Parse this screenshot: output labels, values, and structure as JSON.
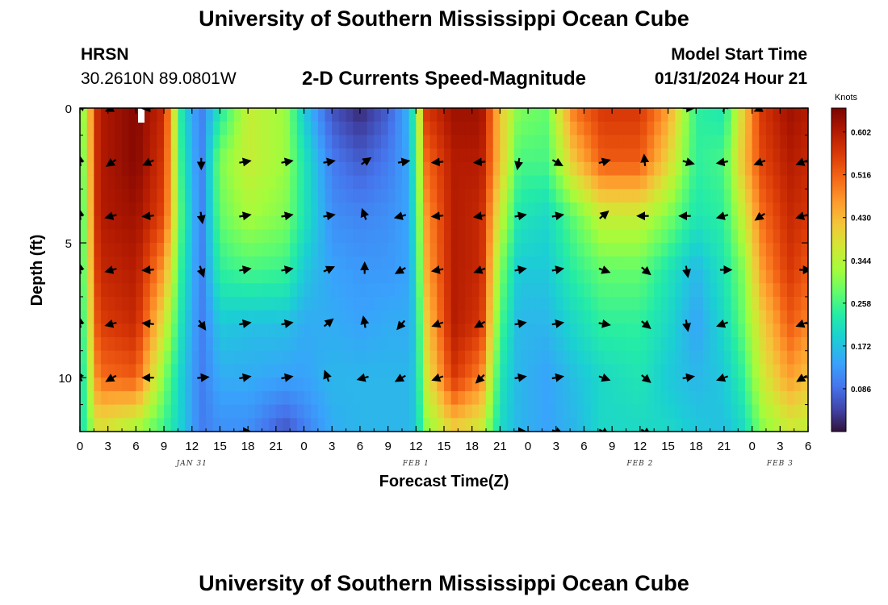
{
  "header": {
    "title": "University of Southern Mississippi Ocean Cube",
    "station": "HRSN",
    "coords": "30.2610N  89.0801W",
    "subtitle": "2-D Currents Speed-Magnitude",
    "model_label": "Model Start Time",
    "model_time": "01/31/2024 Hour 21"
  },
  "footer": {
    "title": "University of Southern Mississippi Ocean Cube"
  },
  "chart_data": {
    "type": "heatmap",
    "title": "2-D Currents Speed-Magnitude",
    "xlabel": "Forecast Time(Z)",
    "ylabel": "Depth (ft)",
    "x_ticks": [
      "0",
      "3",
      "6",
      "9",
      "12",
      "15",
      "18",
      "21",
      "0",
      "3",
      "6",
      "9",
      "12",
      "15",
      "18",
      "21",
      "0",
      "3",
      "6",
      "9",
      "12",
      "15",
      "18",
      "21",
      "0",
      "3",
      "6"
    ],
    "x_range_hours": [
      0,
      78
    ],
    "date_labels": [
      {
        "text": "JAN 31",
        "hour": 12
      },
      {
        "text": "FEB 1",
        "hour": 36
      },
      {
        "text": "FEB 2",
        "hour": 60
      },
      {
        "text": "FEB 3",
        "hour": 75
      }
    ],
    "y_ticks": [
      "0",
      "5",
      "10"
    ],
    "y_range": [
      0,
      12
    ],
    "colorbar": {
      "title": "Knots",
      "labels": [
        "0.602",
        "0.516",
        "0.430",
        "0.344",
        "0.258",
        "0.172",
        "0.086"
      ],
      "range": [
        0.0,
        0.65
      ]
    },
    "depths": [
      0,
      2,
      4,
      6,
      8,
      10,
      12
    ],
    "speed_profiles": [
      {
        "hour": 0,
        "values": [
          0.26,
          0.24,
          0.22,
          0.22,
          0.2,
          0.18,
          0.2
        ]
      },
      {
        "hour": 2,
        "values": [
          0.6,
          0.6,
          0.6,
          0.58,
          0.55,
          0.5,
          0.38
        ]
      },
      {
        "hour": 6,
        "values": [
          0.64,
          0.64,
          0.62,
          0.6,
          0.58,
          0.52,
          0.32
        ]
      },
      {
        "hour": 9,
        "values": [
          0.58,
          0.56,
          0.54,
          0.46,
          0.38,
          0.3,
          0.25
        ]
      },
      {
        "hour": 11,
        "values": [
          0.2,
          0.22,
          0.24,
          0.22,
          0.2,
          0.18,
          0.18
        ]
      },
      {
        "hour": 13,
        "values": [
          0.1,
          0.1,
          0.1,
          0.1,
          0.1,
          0.1,
          0.1
        ]
      },
      {
        "hour": 15,
        "values": [
          0.22,
          0.3,
          0.28,
          0.24,
          0.18,
          0.15,
          0.12
        ]
      },
      {
        "hour": 18,
        "values": [
          0.36,
          0.36,
          0.33,
          0.26,
          0.17,
          0.15,
          0.12
        ]
      },
      {
        "hour": 22,
        "values": [
          0.32,
          0.32,
          0.3,
          0.25,
          0.17,
          0.14,
          0.06
        ]
      },
      {
        "hour": 24,
        "values": [
          0.18,
          0.22,
          0.22,
          0.18,
          0.15,
          0.14,
          0.1
        ]
      },
      {
        "hour": 27,
        "values": [
          0.06,
          0.1,
          0.12,
          0.14,
          0.15,
          0.16,
          0.15
        ]
      },
      {
        "hour": 30,
        "values": [
          0.02,
          0.07,
          0.11,
          0.13,
          0.14,
          0.16,
          0.16
        ]
      },
      {
        "hour": 33,
        "values": [
          0.07,
          0.1,
          0.12,
          0.13,
          0.15,
          0.16,
          0.16
        ]
      },
      {
        "hour": 35,
        "values": [
          0.15,
          0.14,
          0.14,
          0.14,
          0.15,
          0.16,
          0.16
        ]
      },
      {
        "hour": 36,
        "values": [
          0.26,
          0.24,
          0.22,
          0.2,
          0.18,
          0.18,
          0.18
        ]
      },
      {
        "hour": 37,
        "values": [
          0.56,
          0.5,
          0.46,
          0.44,
          0.4,
          0.36,
          0.3
        ]
      },
      {
        "hour": 40,
        "values": [
          0.62,
          0.6,
          0.6,
          0.6,
          0.6,
          0.56,
          0.4
        ]
      },
      {
        "hour": 43,
        "values": [
          0.62,
          0.6,
          0.58,
          0.58,
          0.56,
          0.48,
          0.36
        ]
      },
      {
        "hour": 45,
        "values": [
          0.42,
          0.42,
          0.36,
          0.3,
          0.26,
          0.22,
          0.2
        ]
      },
      {
        "hour": 47,
        "values": [
          0.3,
          0.26,
          0.22,
          0.18,
          0.16,
          0.16,
          0.16
        ]
      },
      {
        "hour": 50,
        "values": [
          0.28,
          0.26,
          0.2,
          0.18,
          0.16,
          0.14,
          0.14
        ]
      },
      {
        "hour": 53,
        "values": [
          0.5,
          0.42,
          0.28,
          0.24,
          0.2,
          0.17,
          0.16
        ]
      },
      {
        "hour": 56,
        "values": [
          0.56,
          0.52,
          0.36,
          0.28,
          0.24,
          0.2,
          0.2
        ]
      },
      {
        "hour": 60,
        "values": [
          0.56,
          0.52,
          0.36,
          0.28,
          0.24,
          0.22,
          0.2
        ]
      },
      {
        "hour": 63,
        "values": [
          0.46,
          0.4,
          0.3,
          0.22,
          0.2,
          0.18,
          0.2
        ]
      },
      {
        "hour": 66,
        "values": [
          0.24,
          0.24,
          0.22,
          0.16,
          0.14,
          0.16,
          0.18
        ]
      },
      {
        "hour": 69,
        "values": [
          0.22,
          0.26,
          0.24,
          0.22,
          0.2,
          0.18,
          0.17
        ]
      },
      {
        "hour": 71,
        "values": [
          0.4,
          0.42,
          0.36,
          0.3,
          0.28,
          0.24,
          0.2
        ]
      },
      {
        "hour": 73,
        "values": [
          0.56,
          0.54,
          0.5,
          0.46,
          0.4,
          0.36,
          0.3
        ]
      },
      {
        "hour": 76,
        "values": [
          0.62,
          0.6,
          0.58,
          0.56,
          0.52,
          0.46,
          0.36
        ]
      },
      {
        "hour": 78,
        "values": [
          0.6,
          0.58,
          0.56,
          0.52,
          0.48,
          0.42,
          0.35
        ]
      }
    ],
    "vectors": {
      "depths": [
        0,
        2,
        4,
        6,
        8,
        10,
        12
      ],
      "hours": [
        0,
        3.5,
        7.5,
        13,
        17.5,
        22,
        26.5,
        30.5,
        34.5,
        38.5,
        43,
        47,
        51,
        56,
        60.5,
        65,
        69,
        73,
        77.5
      ],
      "angles_deg": [
        [
          50,
          205,
          185,
          0,
          0,
          0,
          0,
          0,
          0,
          0,
          0,
          0,
          0,
          0,
          0,
          0,
          80,
          205,
          205
        ],
        [
          100,
          215,
          205,
          270,
          10,
          10,
          10,
          35,
          10,
          185,
          185,
          260,
          330,
          15,
          95,
          345,
          190,
          200,
          200
        ],
        [
          100,
          195,
          185,
          280,
          10,
          10,
          10,
          110,
          195,
          185,
          190,
          10,
          10,
          40,
          180,
          180,
          195,
          215,
          195
        ],
        [
          100,
          195,
          185,
          290,
          10,
          10,
          25,
          90,
          210,
          190,
          200,
          10,
          10,
          340,
          320,
          280,
          0,
          0,
          0
        ],
        [
          100,
          195,
          175,
          305,
          10,
          10,
          40,
          100,
          230,
          200,
          210,
          10,
          10,
          350,
          320,
          280,
          200,
          0,
          200
        ],
        [
          120,
          210,
          180,
          5,
          10,
          10,
          110,
          195,
          210,
          200,
          225,
          10,
          10,
          340,
          320,
          10,
          200,
          0,
          210
        ],
        [
          0,
          0,
          0,
          0,
          0,
          0,
          0,
          0,
          0,
          0,
          0,
          0,
          340,
          330,
          330,
          0,
          0,
          0,
          0
        ]
      ],
      "present": [
        [
          1,
          1,
          1,
          0,
          0,
          0,
          0,
          0,
          0,
          0,
          0,
          0,
          0,
          0,
          0,
          1,
          1,
          1,
          0
        ],
        [
          1,
          1,
          1,
          1,
          1,
          1,
          1,
          1,
          1,
          1,
          1,
          1,
          1,
          1,
          1,
          1,
          1,
          1,
          1
        ],
        [
          1,
          1,
          1,
          1,
          1,
          1,
          1,
          1,
          1,
          1,
          1,
          1,
          1,
          1,
          1,
          1,
          1,
          1,
          1
        ],
        [
          1,
          1,
          1,
          1,
          1,
          1,
          1,
          1,
          1,
          1,
          1,
          1,
          1,
          1,
          1,
          1,
          1,
          0,
          1
        ],
        [
          1,
          1,
          1,
          1,
          1,
          1,
          1,
          1,
          1,
          1,
          1,
          1,
          1,
          1,
          1,
          1,
          1,
          0,
          1
        ],
        [
          1,
          1,
          1,
          1,
          1,
          1,
          1,
          1,
          1,
          1,
          1,
          1,
          1,
          1,
          1,
          1,
          1,
          0,
          1
        ],
        [
          0,
          0,
          0,
          0,
          1,
          0,
          0,
          0,
          0,
          0,
          0,
          1,
          1,
          1,
          1,
          0,
          0,
          0,
          0
        ]
      ]
    }
  }
}
